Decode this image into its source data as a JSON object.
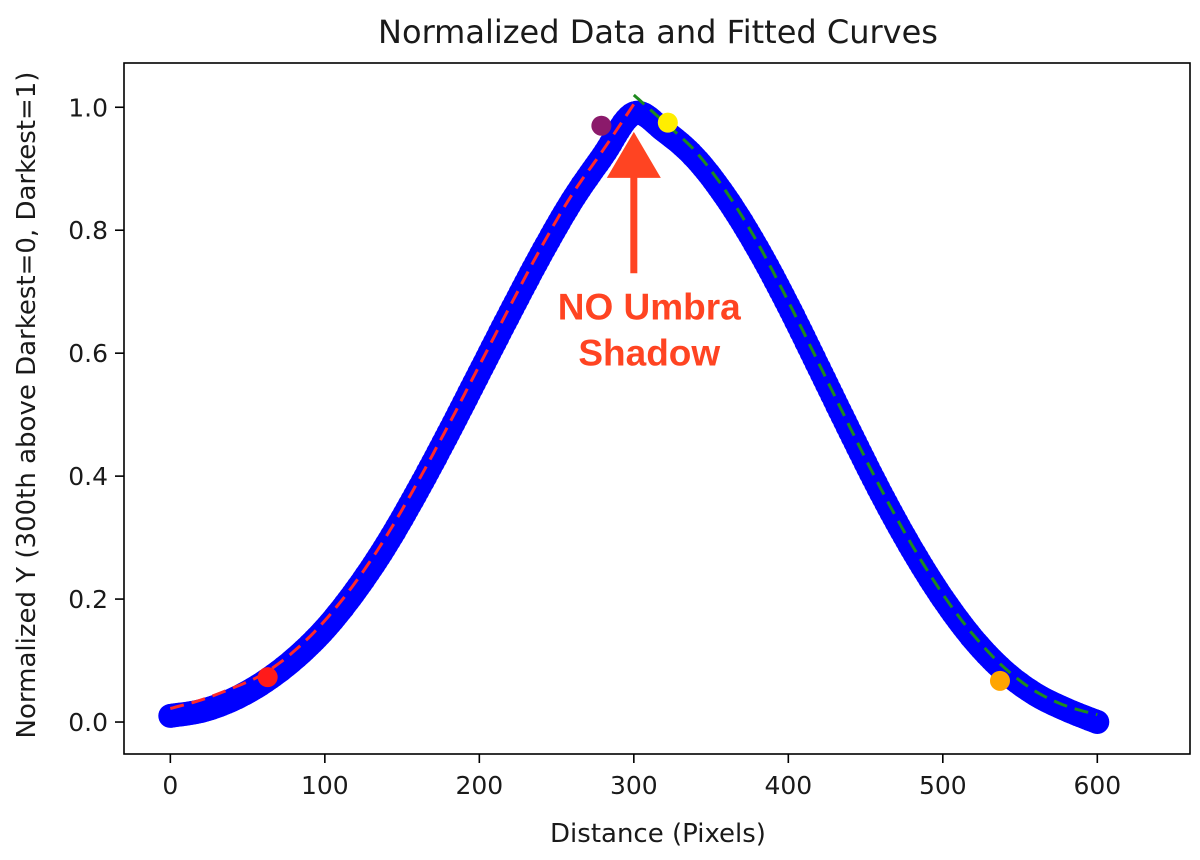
{
  "chart_data": {
    "type": "scatter",
    "title": "Normalized Data and Fitted Curves",
    "xlabel": "Distance (Pixels)",
    "ylabel": "Normalized Y (300th above Darkest=0, Darkest=1)",
    "xlim": [
      -30,
      660
    ],
    "ylim": [
      -0.052,
      1.072
    ],
    "xticks": [
      0,
      100,
      200,
      300,
      400,
      500,
      600
    ],
    "xtick_labels": [
      "0",
      "100",
      "200",
      "300",
      "400",
      "500",
      "600"
    ],
    "yticks": [
      0.0,
      0.2,
      0.4,
      0.6,
      0.8,
      1.0
    ],
    "ytick_labels": [
      "0.0",
      "0.2",
      "0.4",
      "0.6",
      "0.8",
      "1.0"
    ],
    "grid": false,
    "series": [
      {
        "kind": "scatter",
        "color": "#0000ff",
        "x": [
          0,
          20,
          40,
          60,
          80,
          100,
          120,
          140,
          160,
          180,
          200,
          220,
          240,
          260,
          280,
          300,
          320,
          340,
          360,
          380,
          400,
          420,
          440,
          460,
          480,
          500,
          520,
          540,
          560,
          580,
          600
        ],
        "y": [
          0.01,
          0.018,
          0.036,
          0.064,
          0.102,
          0.151,
          0.214,
          0.289,
          0.376,
          0.47,
          0.568,
          0.666,
          0.761,
          0.848,
          0.921,
          0.99,
          0.961,
          0.917,
          0.852,
          0.771,
          0.677,
          0.575,
          0.472,
          0.372,
          0.281,
          0.201,
          0.134,
          0.082,
          0.045,
          0.02,
          0.0
        ]
      },
      {
        "kind": "fit-line",
        "color": "#ff2a2a",
        "dash": "dashed",
        "x": [
          0,
          20,
          40,
          60,
          80,
          100,
          120,
          140,
          160,
          180,
          200,
          220,
          240,
          260,
          280,
          300
        ],
        "y": [
          0.022,
          0.036,
          0.055,
          0.078,
          0.115,
          0.165,
          0.228,
          0.303,
          0.39,
          0.483,
          0.58,
          0.677,
          0.772,
          0.858,
          0.93,
          1.005
        ]
      },
      {
        "kind": "fit-line",
        "color": "#1e8a1e",
        "dash": "dashed",
        "x": [
          300,
          320,
          340,
          360,
          380,
          400,
          420,
          440,
          460,
          480,
          500,
          520,
          540,
          560,
          580,
          600
        ],
        "y": [
          1.02,
          0.975,
          0.928,
          0.862,
          0.78,
          0.684,
          0.582,
          0.479,
          0.379,
          0.288,
          0.208,
          0.141,
          0.088,
          0.05,
          0.026,
          0.012
        ]
      }
    ],
    "highlight_points": [
      {
        "x": 63,
        "y": 0.073,
        "color": "#ff1a1a"
      },
      {
        "x": 279,
        "y": 0.97,
        "color": "#8b1a6b"
      },
      {
        "x": 322,
        "y": 0.975,
        "color": "#ffee00"
      },
      {
        "x": 537,
        "y": 0.067,
        "color": "#ffa500"
      }
    ],
    "annotation": {
      "line1": "NO Umbra",
      "line2": "Shadow",
      "color": "#ff4422",
      "arrow_x": 300,
      "arrow_tip_y": 0.96,
      "arrow_tail_y": 0.73,
      "text_x": 310,
      "text_y1": 0.655,
      "text_y2": 0.58
    }
  }
}
